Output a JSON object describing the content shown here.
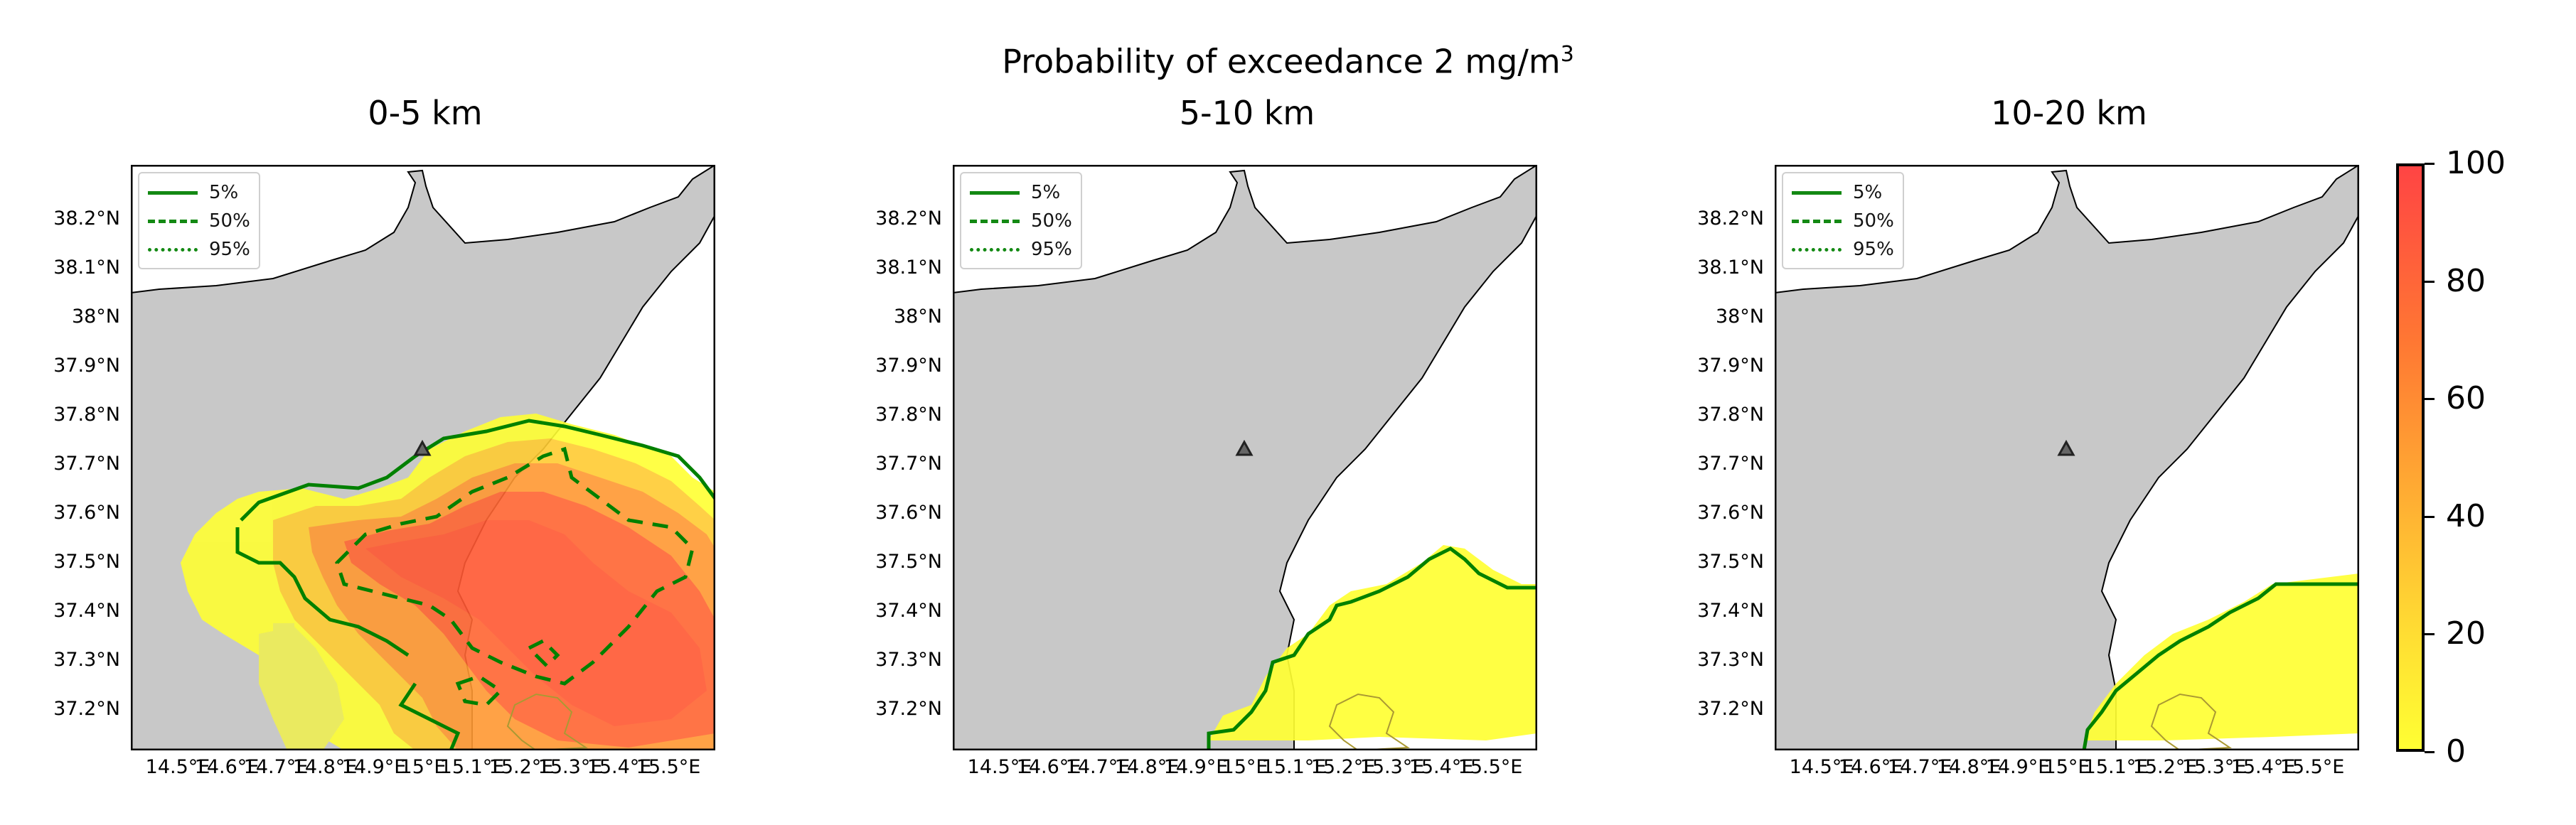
{
  "figure": {
    "suptitle": "Probability of exceedance 2 mg/m",
    "suptitle_sup": "3"
  },
  "panels": [
    {
      "title": "0-5 km"
    },
    {
      "title": "5-10 km"
    },
    {
      "title": "10-20 km"
    }
  ],
  "y_ticks": [
    "38.2°N",
    "38.1°N",
    "38°N",
    "37.9°N",
    "37.8°N",
    "37.7°N",
    "37.6°N",
    "37.5°N",
    "37.4°N",
    "37.3°N",
    "37.2°N"
  ],
  "x_ticks": [
    "14.5°E",
    "14.6°E",
    "14.7°E",
    "14.8°E",
    "14.9°E",
    "15°E",
    "15.1°E",
    "15.2°E",
    "15.3°E",
    "15.4°E",
    "15.5°E"
  ],
  "legend": [
    "5%",
    "50%",
    "95%"
  ],
  "colorbar": {
    "ticks": [
      "100",
      "80",
      "60",
      "40",
      "20",
      "0"
    ],
    "colors": [
      "#ffff33",
      "#ff3333"
    ]
  },
  "map": {
    "land_color": "#c8c8c8",
    "contour_color": "#008000",
    "volcano_marker": "triangle"
  }
}
